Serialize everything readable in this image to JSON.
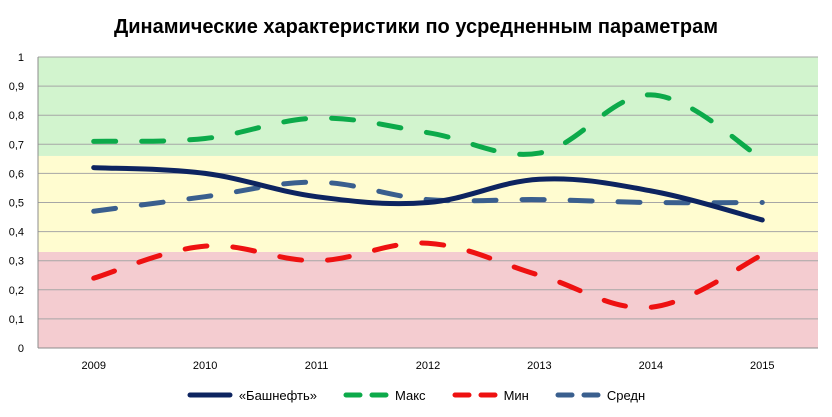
{
  "chart_data": {
    "type": "line",
    "title": "Динамические характеристики по усредненным параметрам",
    "xlabel": "",
    "ylabel": "",
    "categories": [
      "2009",
      "2010",
      "2011",
      "2012",
      "2013",
      "2014",
      "2015"
    ],
    "ylim": [
      0,
      1
    ],
    "yticks": [
      "0",
      "0,1",
      "0,2",
      "0,3",
      "0,4",
      "0,5",
      "0,6",
      "0,7",
      "0,8",
      "0,9",
      "1"
    ],
    "bands": [
      {
        "from": 0,
        "to": 0.33,
        "color": "#F4CCD0"
      },
      {
        "from": 0.33,
        "to": 0.66,
        "color": "#FFFCD0"
      },
      {
        "from": 0.66,
        "to": 1.0,
        "color": "#D2F4CE"
      }
    ],
    "series": [
      {
        "name": "«Башнефть»",
        "color": "#0D2460",
        "style": "solid",
        "values": [
          0.62,
          0.6,
          0.52,
          0.5,
          0.58,
          0.54,
          0.44
        ]
      },
      {
        "name": "Макс",
        "color": "#0CAA4A",
        "style": "dashed",
        "values": [
          0.71,
          0.72,
          0.79,
          0.74,
          0.67,
          0.87,
          0.65
        ]
      },
      {
        "name": "Мин",
        "color": "#EE1111",
        "style": "dashed",
        "values": [
          0.24,
          0.35,
          0.3,
          0.36,
          0.25,
          0.14,
          0.32
        ]
      },
      {
        "name": "Средн",
        "color": "#3A5F8E",
        "style": "dashed",
        "values": [
          0.47,
          0.52,
          0.57,
          0.51,
          0.51,
          0.5,
          0.5
        ]
      }
    ],
    "grid": true,
    "legend_position": "bottom"
  }
}
